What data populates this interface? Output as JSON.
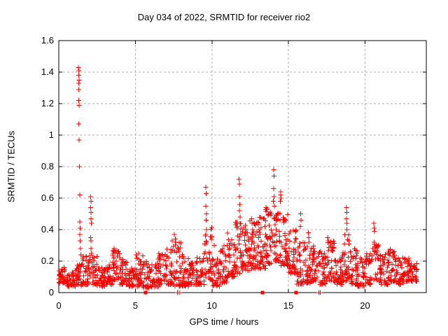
{
  "chart_data": {
    "type": "scatter",
    "title": "Day 034 of 2022, SRMTID for receiver rio2",
    "xlabel": "GPS time / hours",
    "ylabel": "SRMTID / TECUs",
    "xlim": [
      0,
      24
    ],
    "ylim": [
      0,
      1.6
    ],
    "xticks": [
      {
        "v": 0,
        "label": "0"
      },
      {
        "v": 5,
        "label": "5"
      },
      {
        "v": 10,
        "label": "10"
      },
      {
        "v": 15,
        "label": "15"
      },
      {
        "v": 20,
        "label": "20"
      }
    ],
    "yticks": [
      {
        "v": 0,
        "label": "0"
      },
      {
        "v": 0.2,
        "label": "0.2"
      },
      {
        "v": 0.4,
        "label": "0.4"
      },
      {
        "v": 0.6,
        "label": "0.6"
      },
      {
        "v": 0.8,
        "label": "0.8"
      },
      {
        "v": 1,
        "label": "1"
      },
      {
        "v": 1.2,
        "label": "1.2"
      },
      {
        "v": 1.4,
        "label": "1.4"
      },
      {
        "v": 1.6,
        "label": "1.6"
      }
    ],
    "grid": true,
    "legend": "none",
    "marker_color": "#ff0000",
    "grid_color": "#b0b0b0",
    "axis_color": "#000000",
    "background": "#ffffff",
    "series": [
      {
        "name": "srmtid",
        "marker": "plus",
        "band_bins": {
          "bin_width_hours": 0.5,
          "x_end": 23.4,
          "bins": [
            [
              0.0,
              0.06,
              0.16,
              34
            ],
            [
              0.5,
              0.04,
              0.13,
              36
            ],
            [
              1.0,
              0.04,
              0.18,
              34
            ],
            [
              1.5,
              0.05,
              0.26,
              32
            ],
            [
              2.0,
              0.05,
              0.24,
              34
            ],
            [
              2.5,
              0.04,
              0.16,
              36
            ],
            [
              3.0,
              0.05,
              0.18,
              36
            ],
            [
              3.5,
              0.08,
              0.27,
              38
            ],
            [
              4.0,
              0.05,
              0.22,
              36
            ],
            [
              4.5,
              0.04,
              0.16,
              36
            ],
            [
              5.0,
              0.04,
              0.24,
              36
            ],
            [
              5.5,
              0.03,
              0.2,
              32
            ],
            [
              6.0,
              0.03,
              0.2,
              34
            ],
            [
              6.5,
              0.05,
              0.25,
              34
            ],
            [
              7.0,
              0.05,
              0.3,
              36
            ],
            [
              7.5,
              0.04,
              0.32,
              36
            ],
            [
              8.0,
              0.04,
              0.25,
              38
            ],
            [
              8.5,
              0.05,
              0.2,
              36
            ],
            [
              9.0,
              0.05,
              0.24,
              36
            ],
            [
              9.5,
              0.08,
              0.42,
              36
            ],
            [
              10.0,
              0.04,
              0.22,
              36
            ],
            [
              10.5,
              0.06,
              0.3,
              36
            ],
            [
              11.0,
              0.1,
              0.38,
              40
            ],
            [
              11.5,
              0.12,
              0.45,
              42
            ],
            [
              12.0,
              0.14,
              0.46,
              42
            ],
            [
              12.5,
              0.15,
              0.48,
              42
            ],
            [
              13.0,
              0.15,
              0.5,
              42
            ],
            [
              13.5,
              0.18,
              0.55,
              42
            ],
            [
              14.0,
              0.2,
              0.52,
              42
            ],
            [
              14.5,
              0.17,
              0.5,
              42
            ],
            [
              15.0,
              0.12,
              0.42,
              40
            ],
            [
              15.5,
              0.05,
              0.32,
              36
            ],
            [
              16.0,
              0.06,
              0.34,
              38
            ],
            [
              16.5,
              0.07,
              0.3,
              36
            ],
            [
              17.0,
              0.05,
              0.28,
              36
            ],
            [
              17.5,
              0.07,
              0.33,
              36
            ],
            [
              18.0,
              0.05,
              0.26,
              36
            ],
            [
              18.5,
              0.07,
              0.38,
              38
            ],
            [
              19.0,
              0.05,
              0.28,
              36
            ],
            [
              19.5,
              0.04,
              0.22,
              36
            ],
            [
              20.0,
              0.05,
              0.25,
              36
            ],
            [
              20.5,
              0.07,
              0.31,
              36
            ],
            [
              21.0,
              0.05,
              0.25,
              36
            ],
            [
              21.5,
              0.07,
              0.29,
              36
            ],
            [
              22.0,
              0.05,
              0.25,
              38
            ],
            [
              22.5,
              0.07,
              0.22,
              38
            ],
            [
              23.0,
              0.07,
              0.2,
              26
            ]
          ]
        },
        "outliers": [
          [
            1.29,
            1.43
          ],
          [
            1.31,
            1.41
          ],
          [
            1.3,
            1.38
          ],
          [
            1.32,
            1.35
          ],
          [
            1.3,
            1.33
          ],
          [
            1.31,
            1.29
          ],
          [
            1.3,
            1.22
          ],
          [
            1.32,
            1.19
          ],
          [
            1.31,
            1.07
          ],
          [
            1.32,
            0.97
          ],
          [
            1.34,
            0.8
          ],
          [
            1.36,
            0.62
          ],
          [
            1.38,
            0.45
          ],
          [
            1.4,
            0.41
          ],
          [
            1.37,
            0.37
          ],
          [
            1.39,
            0.33
          ],
          [
            1.41,
            0.28
          ],
          [
            1.43,
            0.24
          ],
          [
            2.08,
            0.61
          ],
          [
            2.1,
            0.58
          ],
          [
            2.09,
            0.54
          ],
          [
            2.11,
            0.51
          ],
          [
            2.1,
            0.47
          ],
          [
            2.12,
            0.44
          ],
          [
            2.09,
            0.35
          ],
          [
            2.11,
            0.33
          ],
          [
            2.1,
            0.28
          ],
          [
            2.13,
            0.25
          ],
          [
            3.6,
            0.28
          ],
          [
            3.65,
            0.26
          ],
          [
            5.05,
            0.24
          ],
          [
            5.2,
            0.25
          ],
          [
            7.4,
            0.33
          ],
          [
            7.55,
            0.37
          ],
          [
            7.6,
            0.34
          ],
          [
            9.6,
            0.67
          ],
          [
            9.63,
            0.63
          ],
          [
            9.61,
            0.55
          ],
          [
            9.64,
            0.5
          ],
          [
            9.62,
            0.46
          ],
          [
            9.65,
            0.4
          ],
          [
            9.58,
            0.36
          ],
          [
            10.15,
            0.3
          ],
          [
            11.78,
            0.72
          ],
          [
            11.8,
            0.69
          ],
          [
            11.79,
            0.61
          ],
          [
            11.82,
            0.56
          ],
          [
            11.8,
            0.52
          ],
          [
            11.83,
            0.48
          ],
          [
            12.6,
            0.47
          ],
          [
            12.62,
            0.44
          ],
          [
            14.03,
            0.78
          ],
          [
            14.05,
            0.74
          ],
          [
            14.04,
            0.66
          ],
          [
            14.06,
            0.61
          ],
          [
            14.02,
            0.58
          ],
          [
            14.08,
            0.55
          ],
          [
            14.48,
            0.64
          ],
          [
            14.5,
            0.62
          ],
          [
            14.52,
            0.6
          ],
          [
            14.46,
            0.58
          ],
          [
            15.8,
            0.5
          ],
          [
            15.82,
            0.46
          ],
          [
            15.78,
            0.42
          ],
          [
            16.3,
            0.38
          ],
          [
            16.32,
            0.35
          ],
          [
            17.55,
            0.35
          ],
          [
            17.6,
            0.33
          ],
          [
            18.78,
            0.54
          ],
          [
            18.8,
            0.51
          ],
          [
            18.79,
            0.47
          ],
          [
            18.82,
            0.44
          ],
          [
            18.8,
            0.4
          ],
          [
            20.58,
            0.44
          ],
          [
            20.6,
            0.41
          ],
          [
            20.62,
            0.39
          ],
          [
            20.59,
            0.32
          ],
          [
            7.75,
            0.0
          ],
          [
            7.86,
            0.0
          ],
          [
            16.98,
            0.0
          ],
          [
            17.08,
            0.0
          ]
        ]
      },
      {
        "name": "flags",
        "marker": "square",
        "points": [
          [
            5.67,
            0
          ],
          [
            13.3,
            0
          ],
          [
            15.5,
            0
          ]
        ]
      }
    ]
  }
}
